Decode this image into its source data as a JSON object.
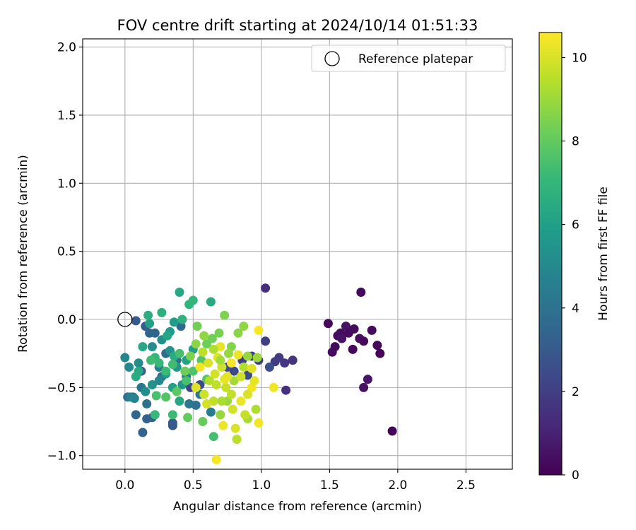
{
  "chart_data": {
    "type": "scatter",
    "title": "FOV centre drift starting at 2024/10/14 01:51:33",
    "xlabel": "Angular distance from reference (arcmin)",
    "ylabel": "Rotation from reference (arcmin)",
    "xlim": [
      -0.31,
      2.84
    ],
    "ylim": [
      -1.1,
      2.06
    ],
    "xticks": [
      0.0,
      0.5,
      1.0,
      1.5,
      2.0,
      2.5
    ],
    "xtick_labels": [
      "0.0",
      "0.5",
      "1.0",
      "1.5",
      "2.0",
      "2.5"
    ],
    "yticks": [
      -1.0,
      -0.5,
      0.0,
      0.5,
      1.0,
      1.5,
      2.0
    ],
    "ytick_labels": [
      "−1.0",
      "−0.5",
      "0.0",
      "0.5",
      "1.0",
      "1.5",
      "2.0"
    ],
    "grid": true,
    "legend": {
      "placement": "top-right",
      "entries": [
        "Reference platepar"
      ]
    },
    "reference_point": {
      "x": 0.0,
      "y": 0.0,
      "label": "Reference platepar"
    },
    "colorbar": {
      "label": "Hours from first FF file",
      "range": [
        0,
        10.6
      ],
      "ticks": [
        0,
        2,
        4,
        6,
        8,
        10
      ],
      "tick_labels": [
        "0",
        "2",
        "4",
        "6",
        "8",
        "10"
      ],
      "colormap": "viridis"
    },
    "colormap_stops": [
      "#440154",
      "#482878",
      "#3e4989",
      "#31688e",
      "#26828e",
      "#1f9e89",
      "#35b779",
      "#6ece58",
      "#b5de2b",
      "#fde725"
    ],
    "series": [
      {
        "points": [
          [
            1.96,
            -0.82,
            0.1
          ],
          [
            1.73,
            0.2,
            0.2
          ],
          [
            1.49,
            -0.03,
            0.2
          ],
          [
            1.52,
            -0.24,
            0.3
          ],
          [
            1.54,
            -0.2,
            0.3
          ],
          [
            1.56,
            -0.12,
            0.4
          ],
          [
            1.58,
            -0.1,
            0.4
          ],
          [
            1.62,
            -0.05,
            0.5
          ],
          [
            1.64,
            -0.1,
            0.3
          ],
          [
            1.67,
            -0.22,
            0.2
          ],
          [
            1.68,
            -0.07,
            0.3
          ],
          [
            1.72,
            -0.14,
            0.4
          ],
          [
            1.75,
            -0.16,
            0.2
          ],
          [
            1.75,
            -0.5,
            0.5
          ],
          [
            1.78,
            -0.44,
            0.6
          ],
          [
            1.81,
            -0.08,
            0.3
          ],
          [
            1.85,
            -0.19,
            0.2
          ],
          [
            1.87,
            -0.25,
            0.1
          ],
          [
            1.59,
            -0.14,
            0.5
          ],
          [
            1.03,
            0.23,
            1.4
          ],
          [
            1.18,
            -0.52,
            1.5
          ],
          [
            1.23,
            -0.3,
            1.6
          ],
          [
            1.17,
            -0.32,
            1.7
          ],
          [
            1.13,
            -0.28,
            1.8
          ],
          [
            1.1,
            -0.31,
            1.9
          ],
          [
            1.03,
            -0.16,
            2.0
          ],
          [
            0.98,
            -0.3,
            2.1
          ],
          [
            0.93,
            -0.27,
            2.2
          ],
          [
            0.86,
            -0.3,
            2.0
          ],
          [
            0.8,
            -0.38,
            2.3
          ],
          [
            0.75,
            -0.35,
            2.4
          ],
          [
            0.9,
            -0.41,
            2.5
          ],
          [
            1.06,
            -0.35,
            2.6
          ],
          [
            0.55,
            -0.48,
            2.4
          ],
          [
            0.48,
            -0.5,
            2.2
          ],
          [
            0.35,
            -0.78,
            2.9
          ],
          [
            0.35,
            -0.76,
            3.0
          ],
          [
            0.2,
            -0.72,
            3.1
          ],
          [
            0.16,
            -0.73,
            3.3
          ],
          [
            0.13,
            -0.83,
            3.4
          ],
          [
            0.08,
            -0.7,
            3.5
          ],
          [
            0.06,
            -0.57,
            3.6
          ],
          [
            0.02,
            -0.57,
            3.8
          ],
          [
            0.12,
            -0.38,
            3.2
          ],
          [
            0.08,
            -0.01,
            3.0
          ],
          [
            0.15,
            -0.05,
            3.1
          ],
          [
            0.18,
            -0.1,
            3.3
          ],
          [
            0.22,
            -0.1,
            3.5
          ],
          [
            0.3,
            -0.25,
            3.7
          ],
          [
            0.38,
            -0.3,
            3.9
          ],
          [
            0.27,
            -0.42,
            4.0
          ],
          [
            0.41,
            -0.05,
            3.6
          ],
          [
            0.16,
            -0.62,
            3.9
          ],
          [
            0.12,
            -0.5,
            4.1
          ],
          [
            0.47,
            -0.62,
            4.2
          ],
          [
            0.52,
            -0.63,
            4.0
          ],
          [
            0.55,
            -0.55,
            4.3
          ],
          [
            0.63,
            -0.68,
            4.4
          ],
          [
            0.45,
            -0.42,
            4.5
          ],
          [
            0.25,
            -0.35,
            4.6
          ],
          [
            0.04,
            -0.57,
            4.7
          ],
          [
            0.07,
            -0.58,
            4.8
          ],
          [
            0.0,
            -0.28,
            4.9
          ],
          [
            0.03,
            -0.35,
            5.0
          ],
          [
            0.1,
            -0.32,
            5.1
          ],
          [
            0.2,
            -0.2,
            5.2
          ],
          [
            0.27,
            -0.15,
            5.3
          ],
          [
            0.33,
            -0.23,
            5.4
          ],
          [
            0.38,
            -0.35,
            5.5
          ],
          [
            0.42,
            -0.48,
            5.6
          ],
          [
            0.15,
            -0.53,
            5.2
          ],
          [
            0.2,
            -0.48,
            5.4
          ],
          [
            0.25,
            -0.45,
            5.0
          ],
          [
            0.3,
            -0.4,
            5.8
          ],
          [
            0.35,
            -0.5,
            6.0
          ],
          [
            0.4,
            -0.6,
            6.2
          ],
          [
            0.45,
            -0.3,
            6.1
          ],
          [
            0.5,
            -0.22,
            5.9
          ],
          [
            0.33,
            -0.09,
            5.7
          ],
          [
            0.36,
            -0.02,
            5.8
          ],
          [
            0.18,
            -0.03,
            6.0
          ],
          [
            0.13,
            -0.2,
            6.3
          ],
          [
            0.1,
            -0.38,
            6.4
          ],
          [
            0.08,
            -0.42,
            6.5
          ],
          [
            0.17,
            0.03,
            6.6
          ],
          [
            0.27,
            0.05,
            6.7
          ],
          [
            0.31,
            -0.12,
            6.2
          ],
          [
            0.36,
            -0.27,
            6.5
          ],
          [
            0.42,
            0.0,
            6.8
          ],
          [
            0.47,
            0.11,
            6.9
          ],
          [
            0.5,
            0.14,
            7.0
          ],
          [
            0.4,
            0.2,
            6.3
          ],
          [
            0.63,
            0.13,
            6.4
          ],
          [
            0.22,
            -0.28,
            7.0
          ],
          [
            0.25,
            -0.32,
            7.1
          ],
          [
            0.3,
            -0.38,
            7.2
          ],
          [
            0.35,
            -0.33,
            7.3
          ],
          [
            0.4,
            -0.25,
            7.4
          ],
          [
            0.45,
            -0.45,
            7.5
          ],
          [
            0.5,
            -0.38,
            7.6
          ],
          [
            0.56,
            -0.3,
            7.7
          ],
          [
            0.6,
            -0.44,
            7.8
          ],
          [
            0.65,
            -0.86,
            7.4
          ],
          [
            0.35,
            -0.7,
            7.2
          ],
          [
            0.22,
            -0.7,
            7.1
          ],
          [
            0.19,
            -0.3,
            7.3
          ],
          [
            0.23,
            -0.56,
            7.5
          ],
          [
            0.3,
            -0.57,
            7.7
          ],
          [
            0.38,
            -0.53,
            7.9
          ],
          [
            0.46,
            -0.72,
            8.0
          ],
          [
            0.57,
            -0.75,
            8.1
          ],
          [
            0.6,
            -0.18,
            8.2
          ],
          [
            0.64,
            -0.14,
            8.3
          ],
          [
            0.69,
            -0.1,
            8.4
          ],
          [
            0.73,
            0.03,
            8.5
          ],
          [
            0.78,
            -0.2,
            8.6
          ],
          [
            0.83,
            -0.1,
            8.7
          ],
          [
            0.87,
            -0.05,
            8.8
          ],
          [
            0.9,
            -0.27,
            8.9
          ],
          [
            0.7,
            -0.7,
            8.9
          ],
          [
            0.75,
            -0.6,
            9.0
          ],
          [
            0.8,
            -0.45,
            9.1
          ],
          [
            0.9,
            -0.73,
            9.2
          ],
          [
            0.96,
            -0.66,
            9.3
          ],
          [
            0.87,
            -0.35,
            9.4
          ],
          [
            0.82,
            -0.88,
            9.5
          ],
          [
            0.78,
            -0.55,
            9.6
          ],
          [
            0.74,
            -0.5,
            9.7
          ],
          [
            0.71,
            -0.35,
            9.8
          ],
          [
            0.66,
            -0.4,
            9.9
          ],
          [
            0.61,
            -0.32,
            10.0
          ],
          [
            0.68,
            -0.28,
            10.1
          ],
          [
            0.75,
            -0.42,
            10.2
          ],
          [
            0.85,
            -0.6,
            10.3
          ],
          [
            0.93,
            -0.5,
            10.4
          ],
          [
            0.98,
            -0.08,
            10.5
          ],
          [
            1.09,
            -0.5,
            10.4
          ],
          [
            0.67,
            -1.03,
            10.5
          ],
          [
            0.7,
            -0.2,
            10.2
          ],
          [
            0.55,
            -0.35,
            10.4
          ],
          [
            0.52,
            -0.5,
            10.1
          ],
          [
            0.58,
            -0.55,
            9.8
          ],
          [
            0.65,
            -0.6,
            9.6
          ],
          [
            0.72,
            -0.78,
            10.3
          ],
          [
            0.81,
            -0.8,
            10.0
          ],
          [
            0.88,
            -0.7,
            9.7
          ],
          [
            0.93,
            -0.36,
            10.1
          ],
          [
            0.98,
            -0.76,
            10.4
          ],
          [
            0.83,
            -0.26,
            10.3
          ],
          [
            0.78,
            -0.32,
            10.5
          ],
          [
            0.73,
            -0.44,
            10.2
          ],
          [
            0.6,
            -0.62,
            9.9
          ],
          [
            0.57,
            -0.24,
            9.5
          ],
          [
            0.65,
            -0.22,
            9.3
          ],
          [
            0.7,
            -0.3,
            9.1
          ],
          [
            0.76,
            -0.25,
            8.9
          ],
          [
            0.62,
            -0.45,
            9.4
          ],
          [
            0.85,
            -0.42,
            9.8
          ],
          [
            0.9,
            -0.55,
            10.0
          ],
          [
            0.95,
            -0.45,
            10.2
          ],
          [
            0.52,
            -0.18,
            8.7
          ],
          [
            0.48,
            -0.27,
            8.5
          ],
          [
            0.44,
            -0.38,
            8.2
          ],
          [
            0.58,
            -0.12,
            8.8
          ],
          [
            0.53,
            -0.05,
            8.3
          ],
          [
            0.97,
            -0.28,
            9.0
          ],
          [
            0.71,
            -0.6,
            9.2
          ],
          [
            0.67,
            -0.48,
            9.6
          ],
          [
            0.79,
            -0.66,
            9.9
          ]
        ]
      }
    ]
  }
}
